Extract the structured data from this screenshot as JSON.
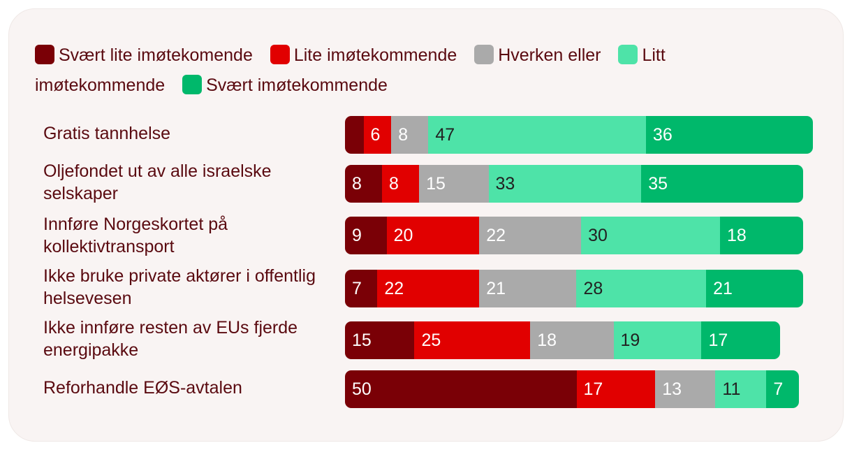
{
  "chart_data": {
    "type": "bar",
    "orientation": "horizontal",
    "stacked": true,
    "categories": [
      "Gratis tannhelse",
      "Oljefondet ut av alle israelske selskaper",
      "Innføre Norgeskortet på kollektivtransport",
      "Ikke bruke private aktører i offentlig helsevesen",
      "Ikke innføre resten av EUs fjerde energipakke",
      "Reforhandle EØS-avtalen"
    ],
    "series": [
      {
        "name": "Svært lite imøtekomende",
        "color": "#7a0006",
        "text_color": "#ffffff",
        "values": [
          4,
          8,
          9,
          7,
          15,
          50
        ],
        "labels": [
          "",
          "8",
          "9",
          "7",
          "15",
          "50"
        ]
      },
      {
        "name": "Lite imøtekommende",
        "color": "#e10000",
        "text_color": "#ffffff",
        "values": [
          6,
          8,
          20,
          22,
          25,
          17
        ],
        "labels": [
          "6",
          "8",
          "20",
          "22",
          "25",
          "17"
        ]
      },
      {
        "name": "Hverken eller",
        "color": "#aaaaaa",
        "text_color": "#ffffff",
        "values": [
          8,
          15,
          22,
          21,
          18,
          13
        ],
        "labels": [
          "8",
          "15",
          "22",
          "21",
          "18",
          "13"
        ]
      },
      {
        "name": "Litt imøtekommende",
        "color": "#4ee3a8",
        "text_color": "#222222",
        "values": [
          47,
          33,
          30,
          28,
          19,
          11
        ],
        "labels": [
          "47",
          "33",
          "30",
          "28",
          "19",
          "11"
        ]
      },
      {
        "name": "Svært imøtekommende",
        "color": "#00b86b",
        "text_color": "#ffffff",
        "values": [
          36,
          35,
          18,
          21,
          17,
          7
        ],
        "labels": [
          "36",
          "35",
          "18",
          "21",
          "17",
          "7"
        ]
      }
    ],
    "title": "",
    "xlabel": "",
    "ylabel": "",
    "legend": "top-left",
    "grid": false
  }
}
